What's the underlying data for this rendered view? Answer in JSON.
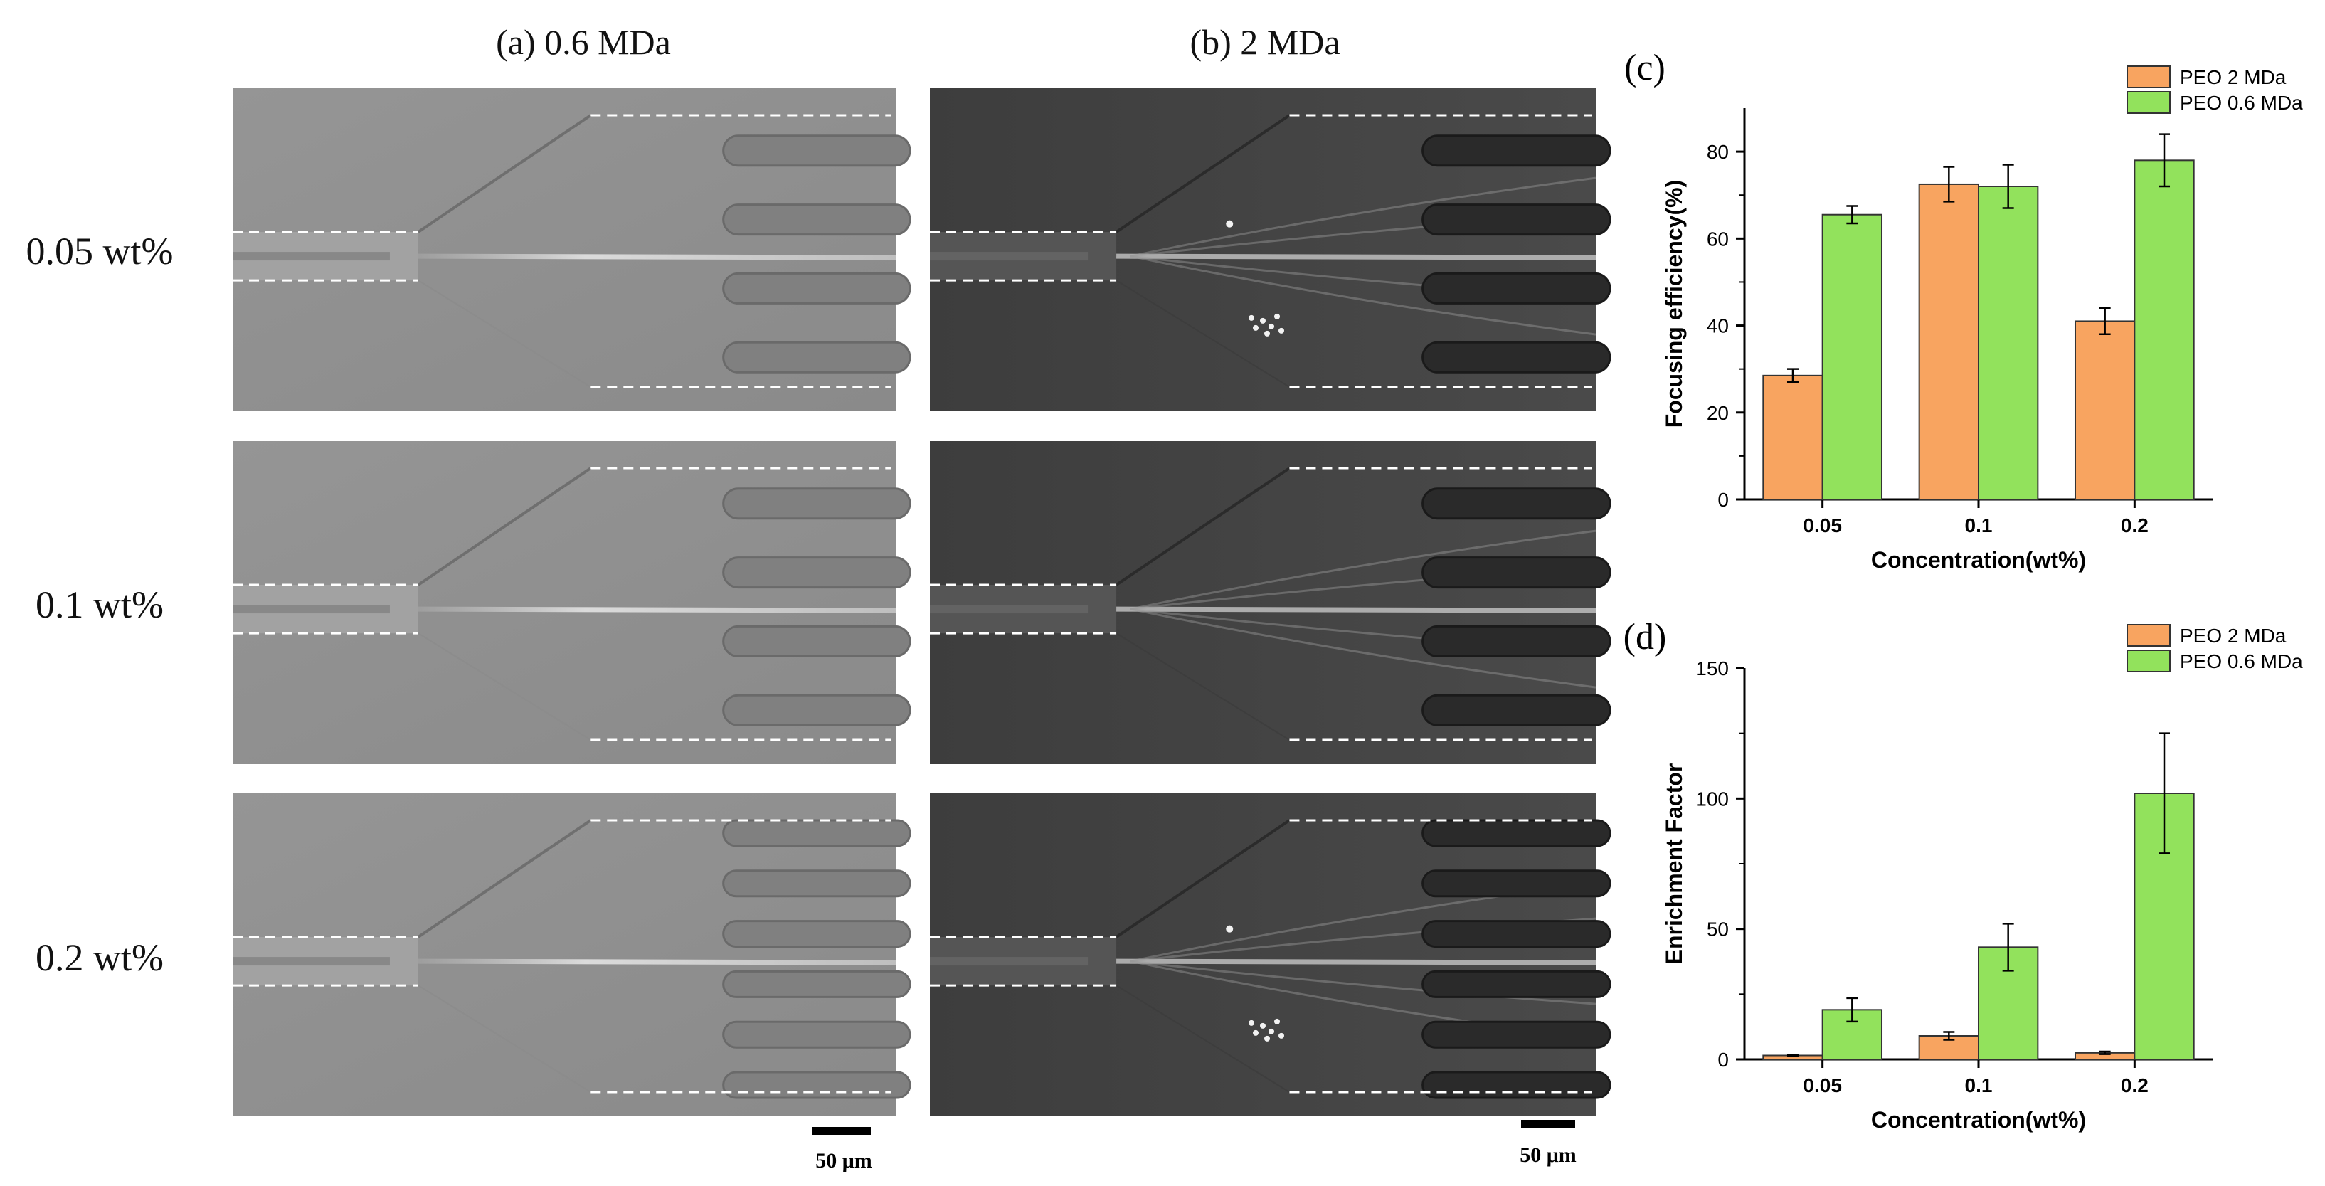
{
  "micrographs": {
    "col_a_title": "(a) 0.6 MDa",
    "col_b_title": "(b) 2 MDa",
    "rows": [
      "0.05 wt%",
      "0.1 wt%",
      "0.2 wt%"
    ],
    "scale_bar_label": "50 μm"
  },
  "chart_data": [
    {
      "type": "bar",
      "panel_label": "(c)",
      "xlabel": "Concentration(wt%)",
      "ylabel": "Focusing efficiency(%)",
      "categories": [
        "0.05",
        "0.1",
        "0.2"
      ],
      "ylim": [
        0,
        90
      ],
      "yticks": [
        0,
        20,
        40,
        60,
        80
      ],
      "legend": "top-right",
      "series": [
        {
          "name": "PEO 2 MDa",
          "color": "#f8a460",
          "values": [
            28.5,
            72.5,
            41
          ],
          "errors": [
            1.5,
            4,
            3
          ]
        },
        {
          "name": "PEO 0.6 MDa",
          "color": "#92e25c",
          "values": [
            65.5,
            72,
            78
          ],
          "errors": [
            2,
            5,
            6
          ]
        }
      ]
    },
    {
      "type": "bar",
      "panel_label": "(d)",
      "xlabel": "Concentration(wt%)",
      "ylabel": "Enrichment Factor",
      "categories": [
        "0.05",
        "0.1",
        "0.2"
      ],
      "ylim": [
        0,
        150
      ],
      "yticks": [
        0,
        50,
        100,
        150
      ],
      "legend": "top-right",
      "series": [
        {
          "name": "PEO 2 MDa",
          "color": "#f8a460",
          "values": [
            1.5,
            9,
            2.5
          ],
          "errors": [
            0.3,
            1.5,
            0.5
          ]
        },
        {
          "name": "PEO 0.6 MDa",
          "color": "#92e25c",
          "values": [
            19,
            43,
            102
          ],
          "errors": [
            4.5,
            9,
            23
          ]
        }
      ]
    }
  ]
}
